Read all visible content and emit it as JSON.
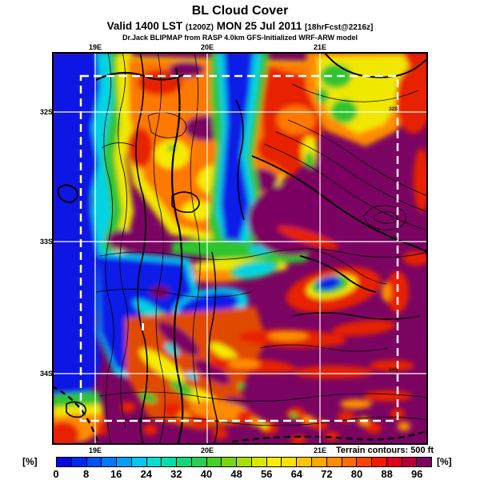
{
  "title": "BL Cloud Cover",
  "subtitle": {
    "valid": "Valid 1400 LST",
    "zulu": "(1200Z)",
    "date": "MON 25 Jul 2011",
    "fcst": "[18hrFcst@2216z]"
  },
  "credit": "Dr.Jack BLIPMAP from RASP 4.0km GFS-Initialized WRF-ARW model",
  "map": {
    "x_ticks_top": [
      "19E",
      "20E",
      "21E"
    ],
    "x_ticks_bottom": [
      "19E",
      "20E",
      "21E"
    ],
    "y_ticks_left": [
      "32S",
      "33S",
      "34S"
    ],
    "y_ticks_inner_right": [
      "32S",
      "33S",
      "34S"
    ],
    "terrain_note": "Terrain contours: 500 ft"
  },
  "colorbar": {
    "unit_left": "[%]",
    "unit_right": "[%]",
    "min": 0,
    "max": 100,
    "segment_step": 4,
    "ticks": [
      0,
      8,
      16,
      24,
      32,
      40,
      48,
      56,
      64,
      72,
      80,
      88,
      96
    ],
    "segment_colors": [
      "#0808e0",
      "#0028f0",
      "#0050f8",
      "#0078ff",
      "#00a0f8",
      "#00c8f0",
      "#00e0d0",
      "#00e0a8",
      "#10d878",
      "#28d050",
      "#48d028",
      "#78d810",
      "#a8e000",
      "#d8e800",
      "#f8f000",
      "#ffe000",
      "#ffc400",
      "#ffa800",
      "#ff8c00",
      "#ff6c00",
      "#ff4400",
      "#f81800",
      "#e00018",
      "#b80038",
      "#7d0560"
    ]
  },
  "map_palette": {
    "ocean_blue": "#0718e2",
    "cyan": "#00d4e4",
    "green": "#2fc42f",
    "yellow": "#f0e800",
    "orange": "#ff8c00",
    "red": "#e82400",
    "purple": "#7b0462"
  }
}
